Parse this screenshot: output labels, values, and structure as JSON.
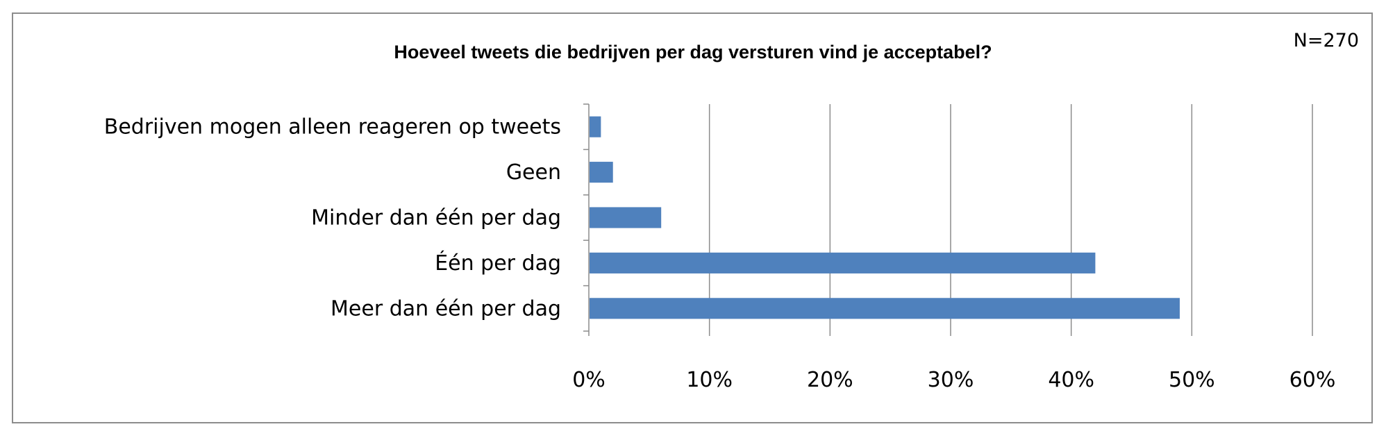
{
  "chart_data": {
    "type": "bar",
    "orientation": "horizontal",
    "title": "Hoeveel tweets die bedrijven per dag versturen vind je acceptabel?",
    "annotation": "N=270",
    "categories": [
      "Bedrijven mogen alleen reageren  op tweets",
      "Geen",
      "Minder dan één  per dag",
      "Één per dag",
      "Meer dan  één per dag"
    ],
    "values": [
      1,
      2,
      6,
      42,
      49
    ],
    "xlim": [
      0,
      60
    ],
    "xticks": [
      "0%",
      "10%",
      "20%",
      "30%",
      "40%",
      "50%",
      "60%"
    ],
    "grid": true,
    "legend": "none",
    "bar_color": "#4f81bd"
  }
}
